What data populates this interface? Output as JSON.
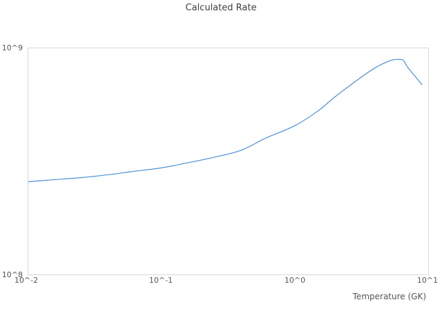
{
  "title": "Calculated Rate",
  "colors": {
    "background": "#ffffff",
    "plot_border": "#d6d6d6",
    "title_text": "#3d3d3d",
    "tick_text": "#545454",
    "line": "#4a90d9"
  },
  "chart_data": {
    "type": "line",
    "title": "Calculated Rate",
    "xlabel": "Temperature (GK)",
    "ylabel": "",
    "x_scale": "log",
    "y_scale": "log",
    "xlim": [
      0.01,
      10
    ],
    "ylim": [
      100000000,
      1000000000
    ],
    "x_ticks": [
      "10^-2",
      "10^-1",
      "10^0",
      "10^1"
    ],
    "y_ticks": [
      "10^8",
      "10^9"
    ],
    "grid": false,
    "legend_position": "none",
    "series": [
      {
        "name": "calculated-rate",
        "color": "#4a90d9",
        "points": [
          [
            0.01,
            257000000
          ],
          [
            0.015,
            262000000
          ],
          [
            0.025,
            268000000
          ],
          [
            0.04,
            276000000
          ],
          [
            0.06,
            285000000
          ],
          [
            0.1,
            296000000
          ],
          [
            0.15,
            310000000
          ],
          [
            0.25,
            330000000
          ],
          [
            0.4,
            355000000
          ],
          [
            0.6,
            400000000
          ],
          [
            1.0,
            455000000
          ],
          [
            1.5,
            530000000
          ],
          [
            2.0,
            610000000
          ],
          [
            3.0,
            730000000
          ],
          [
            4.0,
            820000000
          ],
          [
            5.0,
            875000000
          ],
          [
            5.5,
            890000000
          ],
          [
            6.0,
            892000000
          ],
          [
            6.5,
            885000000
          ],
          [
            7.0,
            825000000
          ],
          [
            8.0,
            750000000
          ],
          [
            9.0,
            690000000
          ]
        ]
      }
    ]
  }
}
